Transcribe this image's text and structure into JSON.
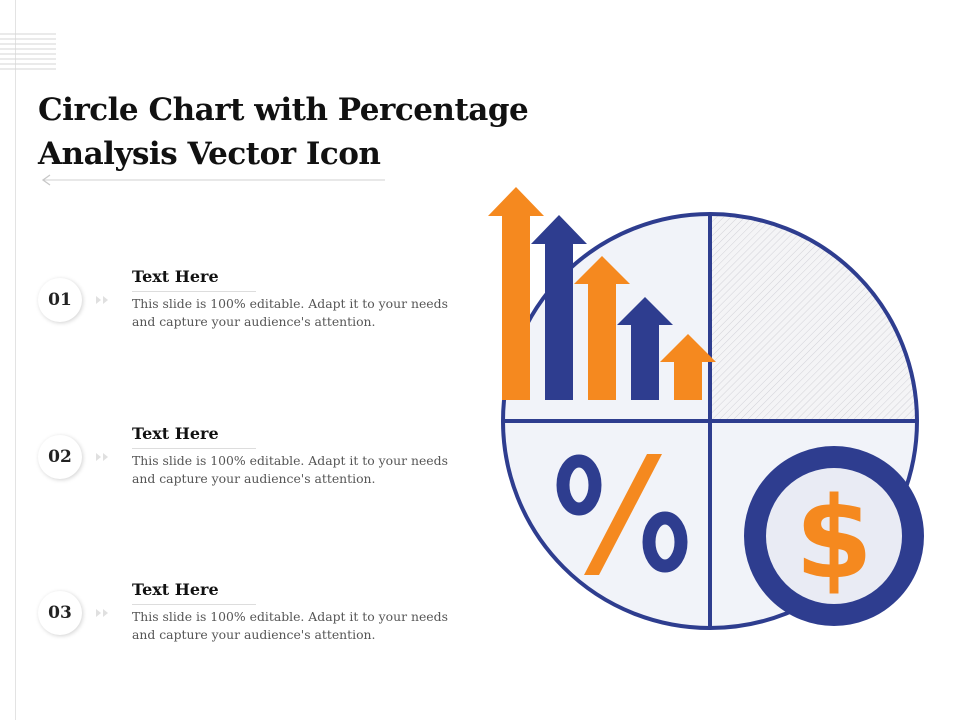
{
  "slide": {
    "title_line1": "Circle Chart with Percentage",
    "title_line2": "Analysis Vector Icon"
  },
  "items": [
    {
      "number": "01",
      "title": "Text Here",
      "description": "This slide is 100% editable. Adapt it to your needs and capture your audience's attention."
    },
    {
      "number": "02",
      "title": "Text Here",
      "description": "This slide is 100% editable. Adapt it to your needs and capture your audience's attention."
    },
    {
      "number": "03",
      "title": "Text Here",
      "description": "This slide is 100% editable. Adapt it to your needs and capture your audience's attention."
    }
  ],
  "graphic": {
    "percent_symbol": "%",
    "dollar_symbol": "$",
    "icons": [
      "up-arrows-icon",
      "percent-icon",
      "dollar-coin-icon",
      "pie-chart-icon"
    ]
  },
  "colors": {
    "navy": "#2e3d8f",
    "orange": "#f5891f",
    "quadrant_fill": "#f1f3f9",
    "coin_fill": "#e9ebf4"
  }
}
